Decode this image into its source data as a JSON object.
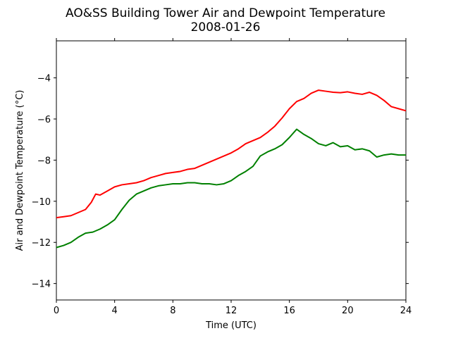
{
  "chart_data": {
    "type": "line",
    "title": "AO&SS Building Tower Air and Dewpoint Temperature",
    "subtitle": "2008-01-26",
    "xlabel": "Time (UTC)",
    "ylabel": "Air and Dewpoint Temperature (°C)",
    "xlim": [
      0,
      24
    ],
    "ylim": [
      -14.8,
      -2.2
    ],
    "xticks": [
      0,
      4,
      8,
      12,
      16,
      20,
      24
    ],
    "yticks": [
      -14,
      -12,
      -10,
      -8,
      -6,
      -4
    ],
    "grid": false,
    "legend": "none",
    "series": [
      {
        "color": "#ff0000",
        "x": [
          0,
          0.5,
          1,
          1.5,
          2,
          2.4,
          2.7,
          3,
          3.5,
          4,
          4.5,
          5,
          5.5,
          6,
          6.5,
          7,
          7.5,
          8,
          8.5,
          9,
          9.5,
          10,
          10.5,
          11,
          11.5,
          12,
          12.5,
          13,
          13.5,
          14,
          14.5,
          15,
          15.5,
          16,
          16.5,
          17,
          17.5,
          18,
          18.5,
          19,
          19.5,
          20,
          20.5,
          21,
          21.5,
          22,
          22.5,
          23,
          23.5,
          24
        ],
        "y": [
          -10.8,
          -10.75,
          -10.7,
          -10.55,
          -10.4,
          -10.05,
          -9.65,
          -9.7,
          -9.5,
          -9.3,
          -9.2,
          -9.15,
          -9.1,
          -9.0,
          -8.85,
          -8.75,
          -8.65,
          -8.6,
          -8.55,
          -8.45,
          -8.4,
          -8.25,
          -8.1,
          -7.95,
          -7.8,
          -7.65,
          -7.45,
          -7.2,
          -7.05,
          -6.9,
          -6.65,
          -6.35,
          -5.95,
          -5.5,
          -5.15,
          -5.0,
          -4.75,
          -4.6,
          -4.65,
          -4.7,
          -4.72,
          -4.68,
          -4.75,
          -4.8,
          -4.7,
          -4.85,
          -5.1,
          -5.4,
          -5.5,
          -5.6
        ]
      },
      {
        "color": "#008000",
        "x": [
          0,
          0.5,
          1,
          1.5,
          2,
          2.5,
          3,
          3.5,
          4,
          4.5,
          5,
          5.5,
          6,
          6.5,
          7,
          7.5,
          8,
          8.5,
          9,
          9.5,
          10,
          10.5,
          11,
          11.5,
          12,
          12.5,
          13,
          13.5,
          14,
          14.5,
          15,
          15.5,
          16,
          16.5,
          17,
          17.5,
          18,
          18.5,
          19,
          19.5,
          20,
          20.5,
          21,
          21.5,
          22,
          22.5,
          23,
          23.5,
          24
        ],
        "y": [
          -12.25,
          -12.15,
          -12.0,
          -11.75,
          -11.55,
          -11.5,
          -11.35,
          -11.15,
          -10.9,
          -10.4,
          -9.95,
          -9.65,
          -9.5,
          -9.35,
          -9.25,
          -9.2,
          -9.15,
          -9.15,
          -9.1,
          -9.1,
          -9.15,
          -9.15,
          -9.2,
          -9.15,
          -9.0,
          -8.75,
          -8.55,
          -8.3,
          -7.8,
          -7.6,
          -7.45,
          -7.25,
          -6.9,
          -6.5,
          -6.75,
          -6.95,
          -7.2,
          -7.3,
          -7.15,
          -7.35,
          -7.3,
          -7.5,
          -7.45,
          -7.55,
          -7.85,
          -7.75,
          -7.7,
          -7.75,
          -7.75
        ]
      }
    ]
  }
}
